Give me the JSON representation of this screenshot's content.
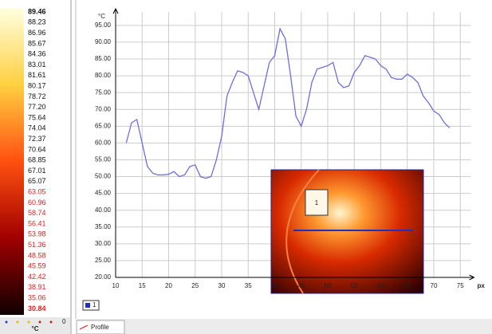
{
  "scale": {
    "dark_labels": [
      "89.46",
      "88.23",
      "86.96",
      "85.67",
      "84.36",
      "83.01",
      "81.61",
      "80.17",
      "78.72",
      "77.20",
      "75.64",
      "74.04",
      "72.37",
      "70.64",
      "68.85",
      "67.01",
      "65.07"
    ],
    "red_labels": [
      "63.05",
      "60.96",
      "58.74",
      "56.41",
      "53.98",
      "51.36",
      "48.58",
      "45.59",
      "42.42",
      "38.91",
      "35.06",
      "30.84"
    ],
    "zero": "0",
    "unit": "°C"
  },
  "tab": "Profile",
  "chart_data": {
    "type": "line",
    "y_unit": "°C",
    "x_unit": "px",
    "legend": "1",
    "marker": "1",
    "x": [
      12,
      13,
      14,
      15,
      16,
      17,
      18,
      19,
      20,
      21,
      22,
      23,
      24,
      25,
      26,
      27,
      28,
      29,
      30,
      31,
      32,
      33,
      34,
      35,
      36,
      37,
      38,
      39,
      40,
      41,
      42,
      43,
      44,
      45,
      46,
      47,
      48,
      49,
      50,
      51,
      52,
      53,
      54,
      55,
      56,
      57,
      58,
      59,
      60,
      61,
      62,
      63,
      64,
      65,
      66,
      67,
      68,
      69,
      70,
      71,
      72,
      73
    ],
    "series": [
      {
        "name": "1",
        "color": "#6e6ede",
        "values": [
          60,
          66,
          67,
          60,
          53,
          51,
          50.5,
          50.5,
          50.7,
          51.5,
          50,
          50.5,
          53,
          53.5,
          50,
          49.5,
          50,
          55,
          62,
          74,
          78,
          81.5,
          81,
          80,
          75,
          70,
          77,
          84,
          86,
          94,
          91,
          80,
          68,
          65,
          70,
          78,
          82,
          82.5,
          83,
          84,
          78,
          76.5,
          77,
          81,
          83,
          86,
          85.5,
          85,
          83,
          82,
          79.5,
          79,
          79,
          80.5,
          79.5,
          78,
          74,
          72,
          69.5,
          68.5,
          66,
          64.5
        ]
      }
    ],
    "xlim": [
      10,
      77
    ],
    "ylim": [
      20,
      99
    ],
    "xticks": [
      10,
      15,
      20,
      25,
      30,
      35,
      40,
      45,
      50,
      55,
      60,
      65,
      70,
      75
    ],
    "yticks": [
      {
        "value": 20,
        "label": "20.00"
      },
      {
        "value": 25,
        "label": "25.00"
      },
      {
        "value": 30,
        "label": "30.00"
      },
      {
        "value": 35,
        "label": "35.00"
      },
      {
        "value": 40,
        "label": "40.00"
      },
      {
        "value": 45,
        "label": "45.00"
      },
      {
        "value": 50,
        "label": "50.00"
      },
      {
        "value": 55,
        "label": "55.00"
      },
      {
        "value": 60,
        "label": "60.00"
      },
      {
        "value": 65,
        "label": "65.00"
      },
      {
        "value": 70,
        "label": "70.00"
      },
      {
        "value": 75,
        "label": "75.00"
      },
      {
        "value": 80,
        "label": "80.00"
      },
      {
        "value": 85,
        "label": "85.00"
      },
      {
        "value": 90,
        "label": "90.00"
      },
      {
        "value": 95,
        "label": "95.00"
      }
    ],
    "grid": true
  }
}
